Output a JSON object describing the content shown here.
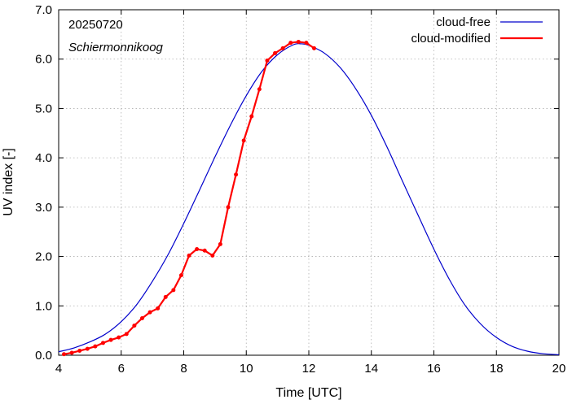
{
  "chart_data": {
    "type": "line",
    "xlabel": "Time  [UTC]",
    "ylabel": "UV index  [-]",
    "xlim": [
      4,
      20
    ],
    "ylim": [
      0,
      7
    ],
    "xticks": [
      4,
      6,
      8,
      10,
      12,
      14,
      16,
      18,
      20
    ],
    "yticks": [
      "0.0",
      "1.0",
      "2.0",
      "3.0",
      "4.0",
      "5.0",
      "6.0",
      "7.0"
    ],
    "grid": true,
    "legend_position": "top-right",
    "annotations": [
      "20250720",
      "Schiermonnikoog"
    ],
    "series": [
      {
        "name": "cloud-free",
        "color": "#0000cc",
        "markers": false,
        "x": [
          4.0,
          4.5,
          5.0,
          5.5,
          6.0,
          6.5,
          7.0,
          7.5,
          8.0,
          8.5,
          9.0,
          9.5,
          10.0,
          10.5,
          11.0,
          11.5,
          11.75,
          12.0,
          12.5,
          13.0,
          13.5,
          14.0,
          14.5,
          15.0,
          15.5,
          16.0,
          16.5,
          17.0,
          17.5,
          18.0,
          18.5,
          19.0,
          19.5,
          20.0
        ],
        "y": [
          0.07,
          0.15,
          0.27,
          0.43,
          0.68,
          1.03,
          1.5,
          2.04,
          2.67,
          3.34,
          4.02,
          4.67,
          5.26,
          5.75,
          6.09,
          6.29,
          6.31,
          6.28,
          6.12,
          5.83,
          5.4,
          4.86,
          4.22,
          3.52,
          2.83,
          2.15,
          1.53,
          1.01,
          0.63,
          0.36,
          0.18,
          0.08,
          0.03,
          0.01
        ]
      },
      {
        "name": "cloud-modified",
        "color": "#ff0000",
        "markers": true,
        "x": [
          4.17,
          4.42,
          4.67,
          4.92,
          5.17,
          5.42,
          5.67,
          5.92,
          6.17,
          6.42,
          6.67,
          6.92,
          7.17,
          7.42,
          7.67,
          7.92,
          8.17,
          8.42,
          8.67,
          8.92,
          9.17,
          9.42,
          9.67,
          9.92,
          10.17,
          10.42,
          10.67,
          10.92,
          11.17,
          11.42,
          11.67,
          11.92,
          12.17
        ],
        "y": [
          0.02,
          0.05,
          0.09,
          0.13,
          0.18,
          0.25,
          0.31,
          0.36,
          0.43,
          0.6,
          0.75,
          0.87,
          0.95,
          1.18,
          1.32,
          1.62,
          2.02,
          2.15,
          2.12,
          2.02,
          2.25,
          3.0,
          3.66,
          4.35,
          4.84,
          5.39,
          5.97,
          6.12,
          6.22,
          6.33,
          6.35,
          6.33,
          6.22
        ]
      }
    ]
  }
}
